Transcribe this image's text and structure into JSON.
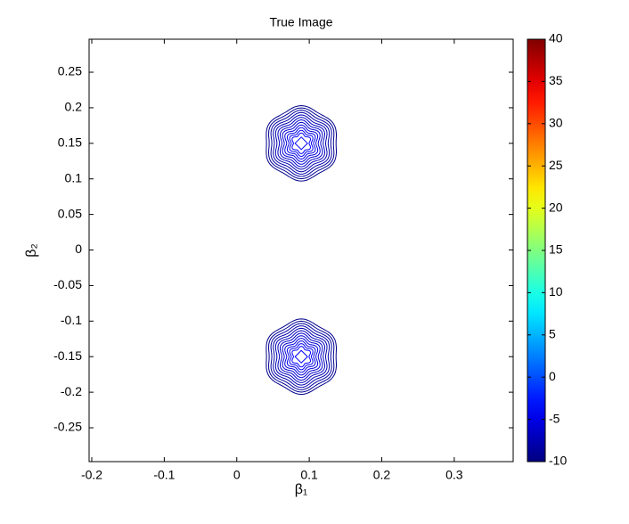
{
  "chart_data": {
    "type": "contour",
    "title": "True Image",
    "xlabel": "β₁",
    "ylabel": "β₂",
    "xlim": [
      -0.2037,
      0.3813
    ],
    "ylim": [
      -0.2976,
      0.2964
    ],
    "xticks": [
      -0.2,
      -0.1,
      0,
      0.1,
      0.2,
      0.3
    ],
    "yticks": [
      -0.25,
      -0.2,
      -0.15,
      -0.1,
      -0.05,
      0,
      0.05,
      0.1,
      0.15,
      0.2,
      0.25
    ],
    "peaks": [
      {
        "x": 0.089,
        "y": 0.15
      },
      {
        "x": 0.089,
        "y": -0.15
      }
    ],
    "levels": [
      -9.5,
      -9,
      -8.5,
      -8,
      -7.5,
      -7,
      -6.5,
      -6,
      -5.5,
      -5,
      -4.5,
      -4
    ],
    "colorbar": {
      "clim": [
        -10,
        40
      ],
      "ticks": [
        -10,
        -5,
        0,
        5,
        10,
        15,
        20,
        25,
        30,
        35,
        40
      ],
      "colormap": "jet"
    }
  }
}
